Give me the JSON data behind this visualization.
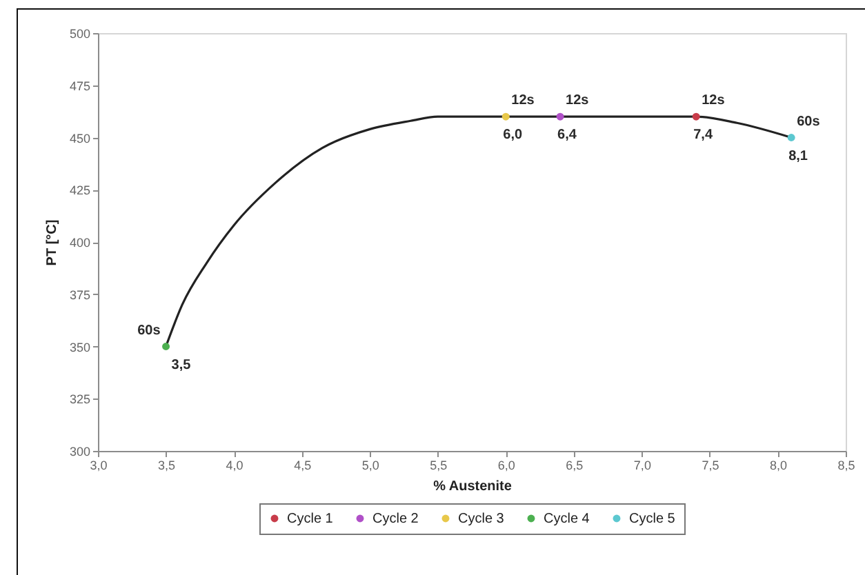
{
  "chart_data": {
    "type": "scatter",
    "xlabel": "% Austenite",
    "ylabel": "PT [°C]",
    "xlim": [
      3,
      8.5
    ],
    "xticks": [
      {
        "value": 3,
        "label": "3,0"
      },
      {
        "value": 3.5,
        "label": "3,5"
      },
      {
        "value": 4,
        "label": "4,0"
      },
      {
        "value": 4.5,
        "label": "4,5"
      },
      {
        "value": 5,
        "label": "5,0"
      },
      {
        "value": 5.5,
        "label": "5,5"
      },
      {
        "value": 6,
        "label": "6,0"
      },
      {
        "value": 6.5,
        "label": "6,5"
      },
      {
        "value": 7,
        "label": "7,0"
      },
      {
        "value": 7.5,
        "label": "7,5"
      },
      {
        "value": 8,
        "label": "8,0"
      },
      {
        "value": 8.5,
        "label": "8,5"
      }
    ],
    "ylim": [
      300,
      500
    ],
    "yticks": [
      300,
      325,
      350,
      375,
      400,
      425,
      450,
      475,
      500
    ],
    "marker": "circle",
    "legend": "bottom",
    "series": [
      {
        "type": "line",
        "color": "#222222",
        "marker": "none",
        "x": [
          3.5,
          3.62,
          3.8,
          4.0,
          4.3,
          4.65,
          5.0,
          5.3,
          5.5,
          6.0,
          6.5,
          7.0,
          7.4,
          7.7,
          8.1
        ],
        "values": [
          350,
          370,
          390,
          408,
          428,
          445,
          454,
          458,
          460,
          460,
          460,
          460,
          460,
          457,
          450
        ]
      },
      {
        "name": "Cycle 1",
        "color": "#c83c4a",
        "x": [
          7.4
        ],
        "values": [
          460
        ]
      },
      {
        "name": "Cycle 2",
        "color": "#b050c8",
        "x": [
          6.4
        ],
        "values": [
          460
        ]
      },
      {
        "name": "Cycle 3",
        "color": "#e8c84a",
        "x": [
          6.0
        ],
        "values": [
          460
        ]
      },
      {
        "name": "Cycle 4",
        "color": "#4cb050",
        "x": [
          3.5
        ],
        "values": [
          350
        ]
      },
      {
        "name": "Cycle 5",
        "color": "#5cc8d0",
        "x": [
          8.1
        ],
        "values": [
          450
        ]
      }
    ],
    "annotations": [
      {
        "text": "12s",
        "x": 7.4,
        "y": 460
      },
      {
        "text": "7,4",
        "x": 7.4,
        "y": 460
      },
      {
        "text": "12s",
        "x": 6.4,
        "y": 460
      },
      {
        "text": "6,4",
        "x": 6.4,
        "y": 460
      },
      {
        "text": "12s",
        "x": 6.0,
        "y": 460
      },
      {
        "text": "6,0",
        "x": 6.0,
        "y": 460
      },
      {
        "text": "60s",
        "x": 3.5,
        "y": 350
      },
      {
        "text": "3,5",
        "x": 3.5,
        "y": 350
      },
      {
        "text": "60s",
        "x": 8.1,
        "y": 450
      },
      {
        "text": "8,1",
        "x": 8.1,
        "y": 450
      }
    ]
  }
}
